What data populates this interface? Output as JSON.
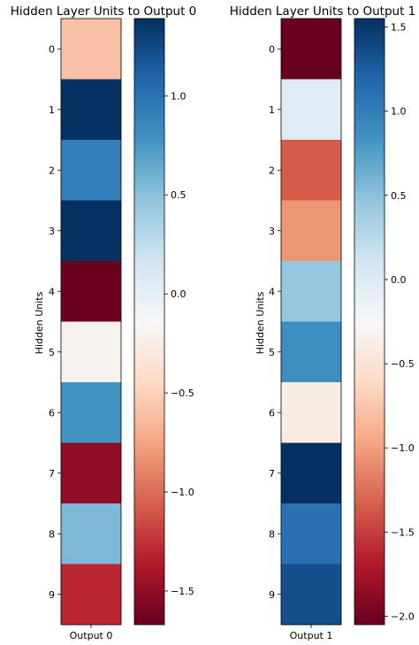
{
  "chart_data": [
    {
      "type": "heatmap",
      "title": "Hidden Layer Units to Output 0",
      "ylabel": "Hidden Units",
      "xlabel": "",
      "x_tick": "Output 0",
      "y_ticks": [
        "0",
        "1",
        "2",
        "3",
        "4",
        "5",
        "6",
        "7",
        "8",
        "9"
      ],
      "values": [
        -0.6,
        1.38,
        0.92,
        1.38,
        -1.65,
        -0.2,
        0.78,
        -1.5,
        0.55,
        -1.3
      ],
      "vmin": -1.67,
      "vmax": 1.39,
      "colormap": "RdBu",
      "colorbar_ticks": [
        1.0,
        0.5,
        0.0,
        -0.5,
        -1.0,
        -1.5
      ],
      "colorbar_tick_labels": [
        "1.0",
        "0.5",
        "0.0",
        "−0.5",
        "−1.0",
        "−1.5"
      ]
    },
    {
      "type": "heatmap",
      "title": "Hidden Layer Units to Output 1",
      "ylabel": "Hidden Units",
      "xlabel": "",
      "x_tick": "Output 1",
      "y_ticks": [
        "0",
        "1",
        "2",
        "3",
        "4",
        "5",
        "6",
        "7",
        "8",
        "9"
      ],
      "values": [
        -2.05,
        -0.02,
        -1.35,
        -1.05,
        0.45,
        0.88,
        -0.4,
        1.55,
        1.1,
        1.35
      ],
      "vmin": -2.05,
      "vmax": 1.55,
      "colormap": "RdBu",
      "colorbar_ticks": [
        1.5,
        1.0,
        0.5,
        0.0,
        -0.5,
        -1.0,
        -1.5,
        -2.0
      ],
      "colorbar_tick_labels": [
        "1.5",
        "1.0",
        "0.5",
        "0.0",
        "−0.5",
        "−1.0",
        "−1.5",
        "−2.0"
      ]
    }
  ]
}
